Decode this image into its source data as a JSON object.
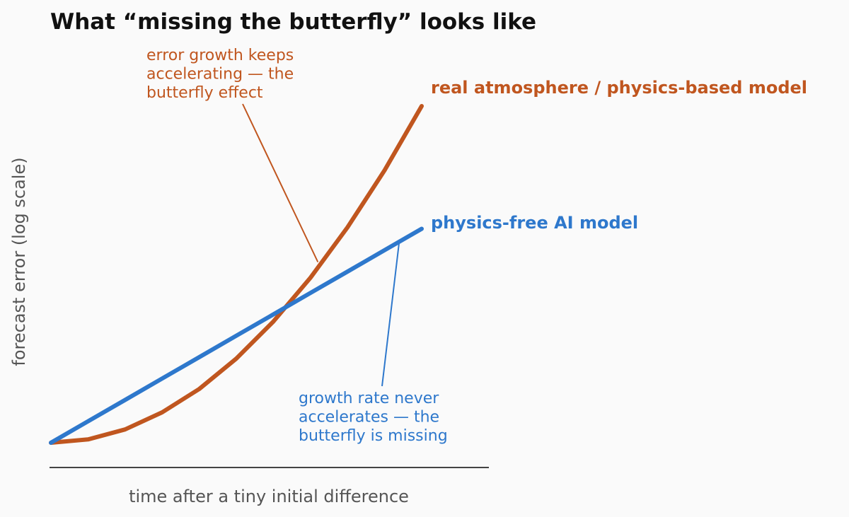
{
  "chart_data": {
    "type": "line",
    "title": "What “missing the butterfly” looks like",
    "xlabel": "time after a tiny initial difference",
    "ylabel": "forecast error  (log scale)",
    "yscale": "log",
    "x_ticks": "none",
    "y_ticks": "none",
    "grid": false,
    "legend": "direct labels at line ends",
    "series": [
      {
        "name": "real atmosphere / physics-based model",
        "color": "#c0561f",
        "shape": "curving upward (accelerating on log scale)",
        "x": [
          0,
          0.1,
          0.2,
          0.3,
          0.4,
          0.5,
          0.6,
          0.7,
          0.8,
          0.9,
          1.0
        ],
        "y": [
          0,
          0.007,
          0.028,
          0.064,
          0.113,
          0.177,
          0.255,
          0.347,
          0.453,
          0.573,
          0.708
        ]
      },
      {
        "name": "physics-free AI model",
        "color": "#2e78cc",
        "shape": "straight line (constant growth rate on log scale)",
        "x": [
          0,
          0.1,
          0.2,
          0.3,
          0.4,
          0.5,
          0.6,
          0.7,
          0.8,
          0.9,
          1.0
        ],
        "y": [
          0,
          0.045,
          0.09,
          0.135,
          0.18,
          0.225,
          0.27,
          0.315,
          0.36,
          0.405,
          0.45
        ]
      }
    ],
    "annotations": [
      {
        "series": 0,
        "lines": [
          "error growth keeps",
          "accelerating — the",
          "butterfly effect"
        ],
        "color": "#c0561f",
        "x": 0.72,
        "y": 0.38
      },
      {
        "series": 1,
        "lines": [
          "growth rate never",
          "accelerates — the",
          "butterfly is missing"
        ],
        "color": "#2e78cc",
        "x": 0.94,
        "y": 0.427
      }
    ]
  }
}
